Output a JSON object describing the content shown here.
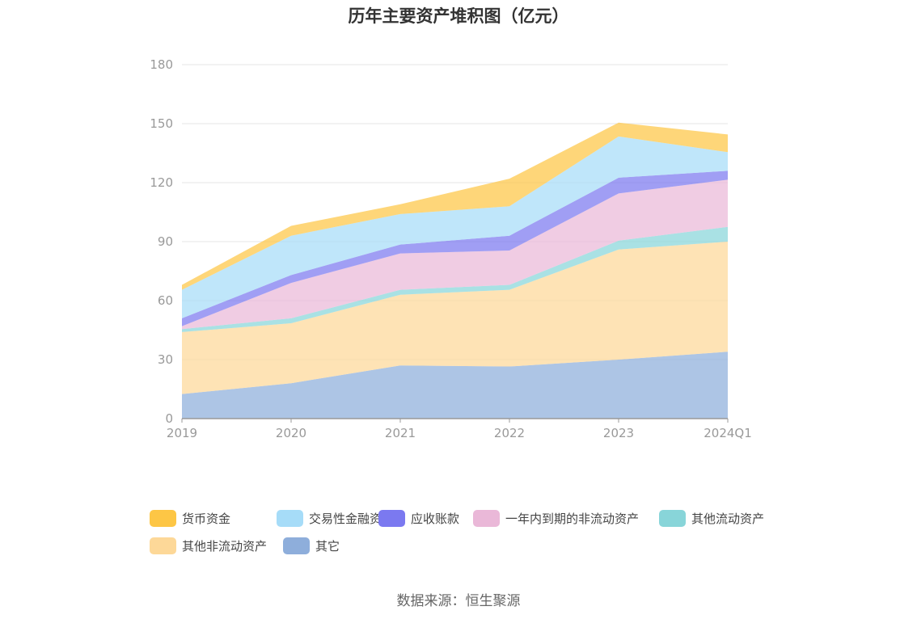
{
  "chart_data": {
    "type": "area",
    "stacked": true,
    "title": "历年主要资产堆积图（亿元）",
    "categories": [
      "2019",
      "2020",
      "2021",
      "2022",
      "2023",
      "2024Q1"
    ],
    "ylim": [
      0,
      180
    ],
    "yticks": [
      "0",
      "30",
      "60",
      "90",
      "120",
      "150",
      "180"
    ],
    "grid": true,
    "legend_position": "bottom",
    "series": [
      {
        "name": "其它",
        "color": "#8eaedb",
        "values": [
          12.5,
          18,
          27,
          26.5,
          30,
          34
        ]
      },
      {
        "name": "其他非流动资产",
        "color": "#fdd898",
        "values": [
          31.5,
          30.5,
          36,
          39,
          56,
          56
        ]
      },
      {
        "name": "其他流动资产",
        "color": "#88d5d9",
        "values": [
          1.5,
          2.5,
          2.5,
          2.5,
          4.5,
          7.5
        ]
      },
      {
        "name": "一年内到期的非流动资产",
        "color": "#eab8d8",
        "values": [
          1.5,
          18,
          18.5,
          17.5,
          24,
          24
        ]
      },
      {
        "name": "应收账款",
        "color": "#7b79f0",
        "values": [
          4,
          4,
          4.5,
          7.5,
          8,
          4.5
        ]
      },
      {
        "name": "交易性金融资产",
        "color": "#a6dcf8",
        "values": [
          14.5,
          20,
          15.5,
          15,
          21,
          9.5
        ]
      },
      {
        "name": "货币资金",
        "color": "#fdc645",
        "values": [
          2.5,
          5,
          5,
          14,
          7,
          9
        ]
      }
    ]
  },
  "legend_order": [
    "货币资金",
    "交易性金融资产",
    "应收账款",
    "一年内到期的非流动资产",
    "其他流动资产",
    "其他非流动资产",
    "其它"
  ],
  "source": "数据来源：恒生聚源"
}
